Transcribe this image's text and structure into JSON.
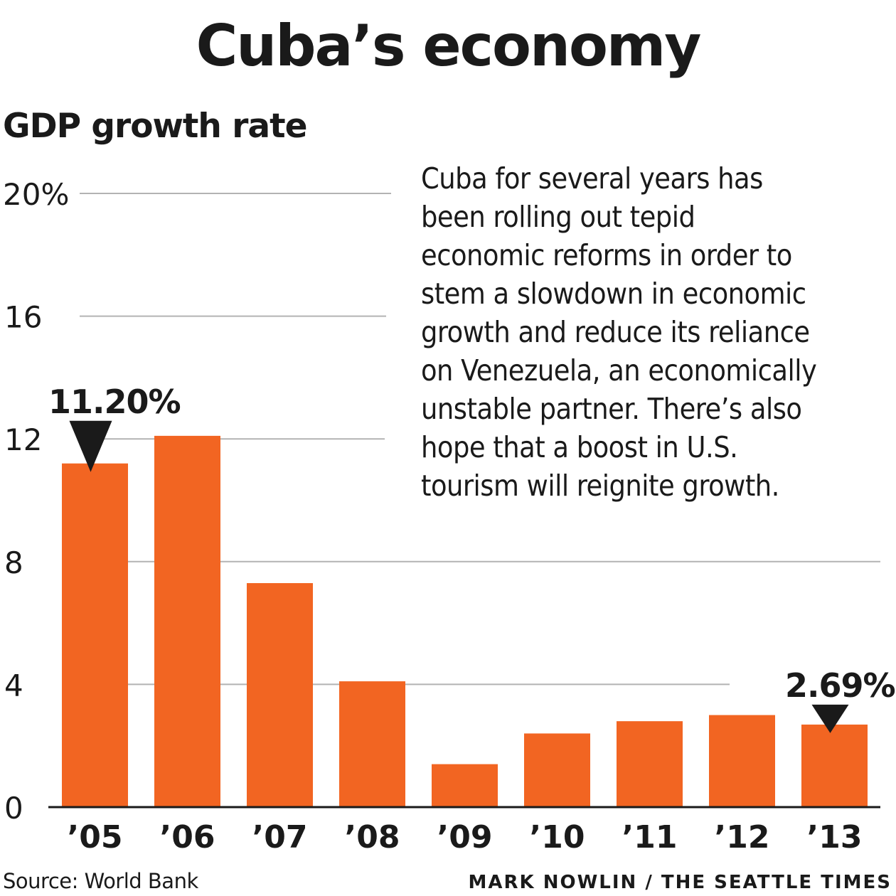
{
  "header": {
    "title": "Cuba’s economy",
    "subtitle": "GDP growth rate"
  },
  "description": [
    "Cuba for several years has",
    "been rolling out tepid",
    "economic reforms in order to",
    "stem a slowdown in economic",
    "growth and reduce its reliance",
    "on Venezuela, an economically",
    "unstable partner. There’s also",
    "hope that a boost in U.S.",
    "tourism will reignite growth."
  ],
  "footer": {
    "source": "Source: World Bank",
    "credit": "MARK NOWLIN / THE SEATTLE TIMES"
  },
  "chart_data": {
    "type": "bar",
    "categories": [
      "’05",
      "’06",
      "’07",
      "’08",
      "’09",
      "’10",
      "’11",
      "’12",
      "’13"
    ],
    "values": [
      11.2,
      12.1,
      7.3,
      4.1,
      1.4,
      2.4,
      2.8,
      3.0,
      2.69
    ],
    "ylim": [
      0,
      20
    ],
    "yticks": [
      0,
      4,
      8,
      12,
      16,
      20
    ],
    "ytick_labels": [
      "0",
      "4",
      "8",
      "12",
      "16",
      "20%"
    ],
    "grid": true,
    "bar_color": "#f26522",
    "annotations": [
      {
        "category_index": 0,
        "label": "11.20%",
        "marker": "down-triangle"
      },
      {
        "category_index": 8,
        "label": "2.69%",
        "marker": "down-triangle"
      }
    ],
    "xlabel": "",
    "ylabel": ""
  }
}
